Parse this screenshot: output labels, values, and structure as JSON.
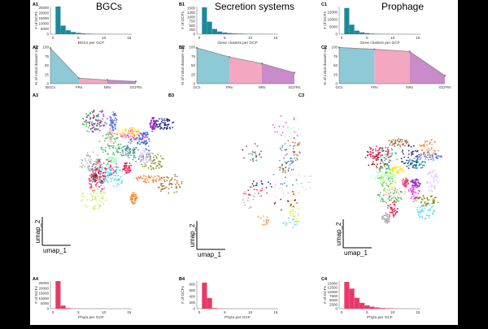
{
  "columns": [
    {
      "title": "BGCs"
    },
    {
      "title": "Secretion systems"
    },
    {
      "title": "Prophage"
    }
  ],
  "umap_axis": {
    "x_label": "umap_1",
    "y_label": "umap_2"
  },
  "colors": {
    "teal": "#1a8a9a",
    "pink": "#e8396b",
    "area_blue": "#8ec9d6",
    "area_pink": "#f4a7c0",
    "area_purple": "#c98bc9"
  },
  "chart_data": [
    {
      "panel": "A1",
      "type": "bar",
      "xlabel": "BGCs per GCF",
      "ylabel": "# of GCFs",
      "x": [
        1,
        2,
        3,
        4,
        5,
        6,
        7,
        8,
        9,
        10,
        11,
        12,
        13,
        14,
        15
      ],
      "xticks": [
        0,
        5,
        10,
        15
      ],
      "yticks": [
        0,
        5000,
        10000,
        15000,
        20000,
        25000
      ],
      "values": [
        26000,
        8000,
        3600,
        2000,
        1200,
        700,
        450,
        300,
        200,
        150,
        100,
        70,
        50,
        30,
        20
      ],
      "ylim": [
        0,
        26000
      ],
      "color": "#1a8a9a"
    },
    {
      "panel": "B1",
      "type": "bar",
      "xlabel": "Gene clusters per GCF",
      "ylabel": "# of GCFs",
      "x": [
        1,
        2,
        3,
        4,
        5,
        6,
        7,
        8,
        9,
        10,
        11,
        12,
        13,
        14,
        15
      ],
      "xticks": [
        0,
        5,
        10,
        15
      ],
      "yticks": [
        0,
        250,
        500,
        750,
        1000,
        1250,
        1500
      ],
      "values": [
        1550,
        720,
        300,
        150,
        90,
        60,
        40,
        30,
        20,
        15,
        10,
        8,
        6,
        4,
        3
      ],
      "ylim": [
        0,
        1600
      ],
      "color": "#1a8a9a"
    },
    {
      "panel": "C1",
      "type": "bar",
      "xlabel": "Gene clusters per GCF",
      "ylabel": "# of GCFs",
      "x": [
        1,
        2,
        3,
        4,
        5,
        6,
        7,
        8,
        9,
        10,
        11,
        12,
        13,
        14,
        15
      ],
      "xticks": [
        0,
        5,
        10,
        15
      ],
      "yticks": [
        0,
        5000,
        10000,
        15000
      ],
      "values": [
        18000,
        6500,
        2400,
        1200,
        700,
        400,
        250,
        150,
        100,
        70,
        50,
        30,
        20,
        15,
        10
      ],
      "ylim": [
        0,
        19000
      ],
      "color": "#1a8a9a"
    },
    {
      "panel": "A2",
      "type": "area",
      "ylabel": "% of initial dataset size",
      "categories": [
        "BGCs",
        "FRs",
        "NRs",
        "GCFRs"
      ],
      "values": [
        97,
        15,
        10,
        6
      ],
      "ylim": [
        0,
        100
      ],
      "yticks": [
        0,
        25,
        50,
        75,
        100
      ],
      "segment_colors": [
        "#8ec9d6",
        "#f4a7c0",
        "#c98bc9"
      ]
    },
    {
      "panel": "B2",
      "type": "area",
      "ylabel": "% of initial dataset size",
      "categories": [
        "GCs",
        "FRs",
        "NRs",
        "GCFRs"
      ],
      "values": [
        98,
        73,
        55,
        30
      ],
      "ylim": [
        0,
        100
      ],
      "yticks": [
        0,
        25,
        50,
        75,
        100
      ],
      "segment_colors": [
        "#8ec9d6",
        "#f4a7c0",
        "#c98bc9"
      ]
    },
    {
      "panel": "C2",
      "type": "area",
      "ylabel": "% of initial dataset size",
      "categories": [
        "GCs",
        "FRs",
        "NRs",
        "GCFRs"
      ],
      "values": [
        99,
        94,
        88,
        22
      ],
      "ylim": [
        0,
        100
      ],
      "yticks": [
        0,
        25,
        50,
        75,
        100
      ],
      "segment_colors": [
        "#8ec9d6",
        "#f4a7c0",
        "#c98bc9"
      ]
    },
    {
      "panel": "A4",
      "type": "bar",
      "xlabel": "Phyla per GCF",
      "ylabel": "# of GCFs",
      "x": [
        1,
        2,
        3,
        4,
        5,
        6,
        7,
        8,
        9,
        10,
        11,
        12,
        13,
        14,
        15
      ],
      "xticks": [
        0,
        5,
        10,
        15
      ],
      "yticks": [
        0,
        5000,
        10000,
        15000,
        20000,
        25000
      ],
      "values": [
        27000,
        3000,
        600,
        200,
        100,
        50,
        30,
        20,
        10,
        5,
        3,
        2,
        1,
        1,
        1
      ],
      "ylim": [
        0,
        27000
      ],
      "color": "#e8396b"
    },
    {
      "panel": "B4",
      "type": "bar",
      "xlabel": "Phyla per GCF",
      "ylabel": "# of GCFs",
      "x": [
        1,
        2,
        3,
        4,
        5,
        6,
        7,
        8,
        9,
        10,
        11,
        12,
        13,
        14,
        15
      ],
      "xticks": [
        0,
        5,
        10,
        15
      ],
      "yticks": [
        0,
        200,
        400,
        600,
        800
      ],
      "values": [
        850,
        350,
        20,
        5,
        2,
        1,
        0,
        0,
        0,
        0,
        0,
        0,
        0,
        0,
        0
      ],
      "ylim": [
        0,
        900
      ],
      "color": "#e8396b"
    },
    {
      "panel": "C4",
      "type": "bar",
      "xlabel": "Phyla per GCF",
      "ylabel": "# of GCFs",
      "x": [
        1,
        2,
        3,
        4,
        5,
        6,
        7,
        8,
        9,
        10,
        11,
        12,
        13,
        14,
        15
      ],
      "xticks": [
        0,
        5,
        10,
        15
      ],
      "yticks": [
        0,
        2500,
        5000,
        7500,
        10000,
        12500,
        15000
      ],
      "values": [
        16000,
        12000,
        6500,
        3500,
        2000,
        1200,
        700,
        400,
        250,
        150,
        80,
        40,
        20,
        10,
        5
      ],
      "ylim": [
        0,
        16500
      ],
      "color": "#e8396b"
    }
  ]
}
